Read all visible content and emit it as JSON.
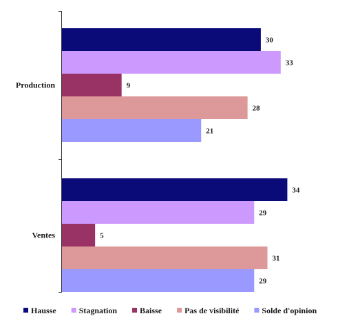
{
  "chart_data": {
    "type": "bar",
    "orientation": "horizontal",
    "categories": [
      "Production",
      "Ventes"
    ],
    "series": [
      {
        "name": "Hausse",
        "values": [
          30,
          34
        ],
        "color": "#0a0a78"
      },
      {
        "name": "Stagnation",
        "values": [
          33,
          29
        ],
        "color": "#cc99ff"
      },
      {
        "name": "Baisse",
        "values": [
          9,
          5
        ],
        "color": "#993366"
      },
      {
        "name": "Pas de visibilité",
        "values": [
          28,
          31
        ],
        "color": "#dd9999"
      },
      {
        "name": "Solde d'opinion",
        "values": [
          21,
          29
        ],
        "color": "#9999ff"
      }
    ],
    "xlim": [
      0,
      37
    ],
    "grid": false,
    "legend": "bottom",
    "data_labels": true
  }
}
